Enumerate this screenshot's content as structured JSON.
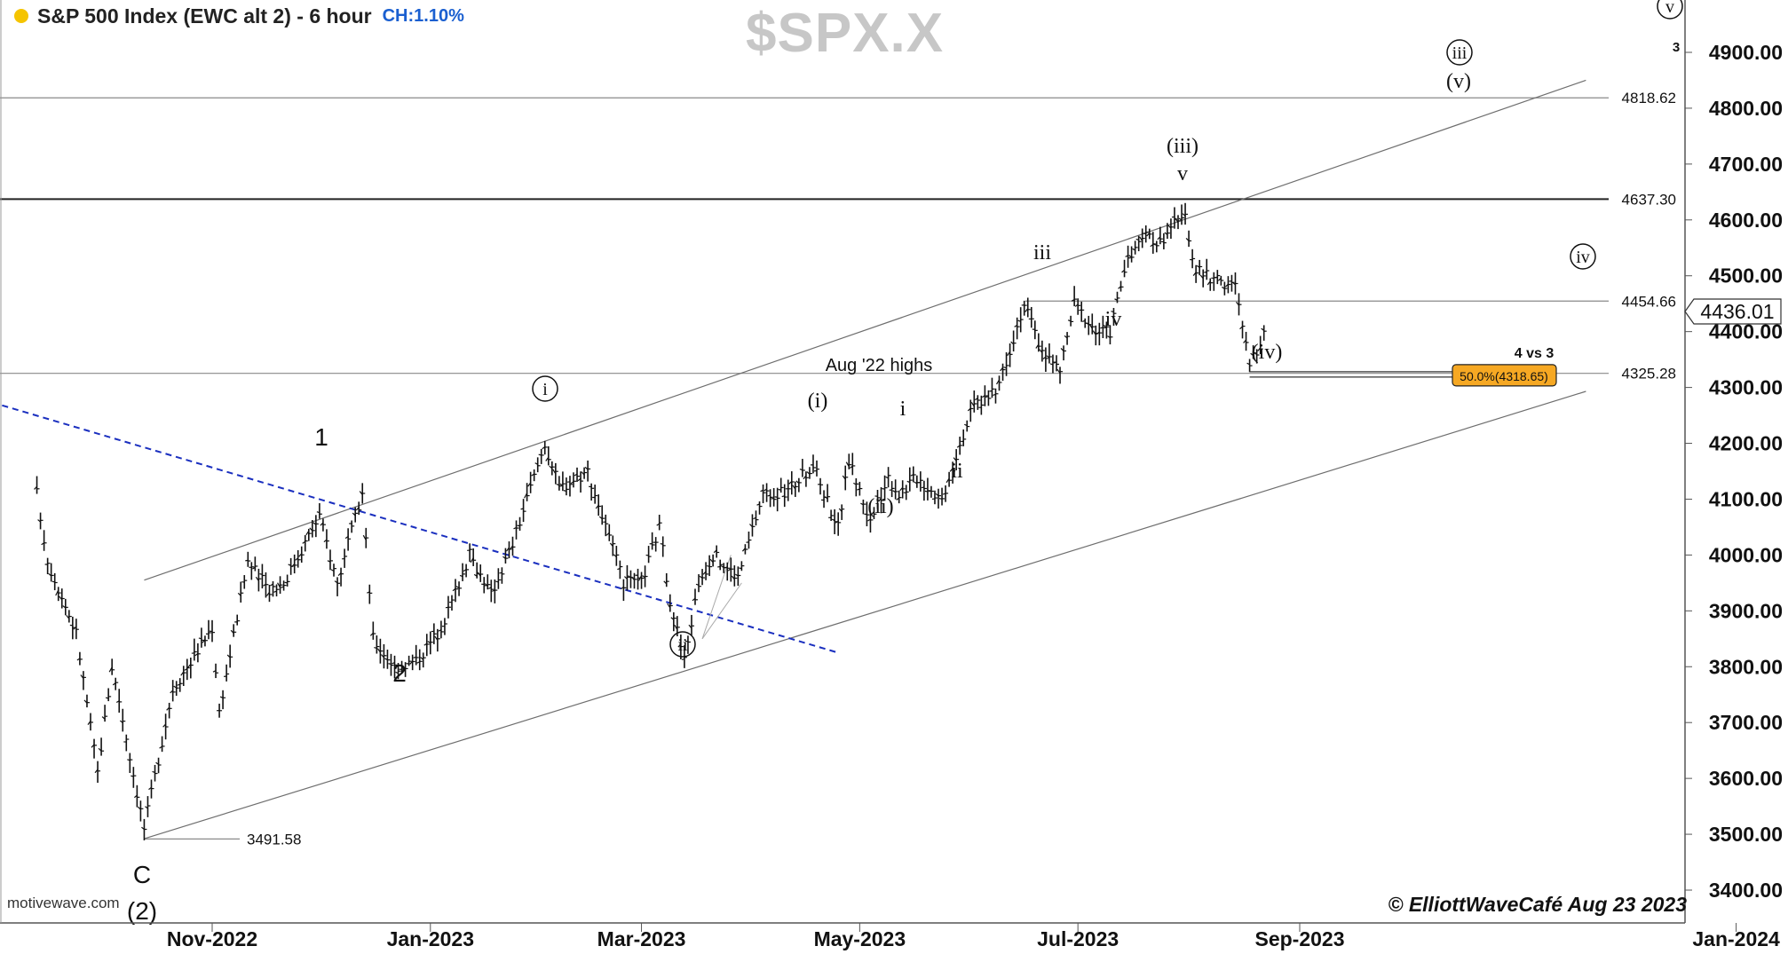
{
  "header": {
    "title": "S&P 500 Index (EWC alt 2) - 6 hour",
    "change": "CH:1.10%",
    "watermark": "$SPX.X",
    "status_dot_color": "#f5c400",
    "change_color": "#1a5fd0"
  },
  "footer": {
    "source": "motivewave.com",
    "copyright": "© ElliottWaveCafé Aug 23 2023"
  },
  "chart_data": {
    "type": "ohlc",
    "ylim": [
      3360,
      4980
    ],
    "y_ticks": [
      "3400.00",
      "3500.00",
      "3600.00",
      "3700.00",
      "3800.00",
      "3900.00",
      "4000.00",
      "4100.00",
      "4200.00",
      "4300.00",
      "4400.00",
      "4500.00",
      "4600.00",
      "4700.00",
      "4800.00",
      "4900.00"
    ],
    "x_ticks": [
      "Nov-2022",
      "Jan-2023",
      "Mar-2023",
      "May-2023",
      "Jul-2023",
      "Sep-2023",
      "Jan-2024"
    ],
    "current_price": "4436.01",
    "levels": [
      {
        "label": "4818.62",
        "value": 4818.62
      },
      {
        "label": "4637.30",
        "value": 4637.3
      },
      {
        "label": "4454.66",
        "value": 4454.66
      },
      {
        "label": "4325.28",
        "value": 4325.28
      }
    ],
    "low_marker": {
      "label": "3491.58",
      "value": 3491.58
    },
    "fib_marker": {
      "label": "50.0%(4318.65)",
      "value": 4318.65,
      "note": "4 vs 3"
    },
    "text_annotations": [
      "Aug '22 highs"
    ],
    "wave_labels": [
      "C",
      "(2)",
      "1",
      "2",
      "i",
      "ii",
      "(i)",
      "(ii)",
      "i",
      "ii",
      "iii",
      "iv",
      "v",
      "(iii)",
      "(iv)",
      "iii",
      "(v)",
      "iv",
      "v",
      "3"
    ],
    "bar_pivots": [
      [
        "2022-09-13",
        4110
      ],
      [
        "2022-09-16",
        3990
      ],
      [
        "2022-09-24",
        3860
      ],
      [
        "2022-09-30",
        3610
      ],
      [
        "2022-10-04",
        3800
      ],
      [
        "2022-10-06",
        3740
      ],
      [
        "2022-10-13",
        3510
      ],
      [
        "2022-10-21",
        3760
      ],
      [
        "2022-11-01",
        3870
      ],
      [
        "2022-11-03",
        3720
      ],
      [
        "2022-11-11",
        3990
      ],
      [
        "2022-11-14",
        3960
      ],
      [
        "2022-11-17",
        3940
      ],
      [
        "2022-11-21",
        3950
      ],
      [
        "2022-12-01",
        4070
      ],
      [
        "2022-12-06",
        3950
      ],
      [
        "2022-12-13",
        4110
      ],
      [
        "2022-12-16",
        3850
      ],
      [
        "2022-12-22",
        3800
      ],
      [
        "2022-12-28",
        3810
      ],
      [
        "2023-01-03",
        3860
      ],
      [
        "2023-01-06",
        3900
      ],
      [
        "2023-01-12",
        4000
      ],
      [
        "2023-01-18",
        3930
      ],
      [
        "2023-01-24",
        4020
      ],
      [
        "2023-02-02",
        4200
      ],
      [
        "2023-02-06",
        4120
      ],
      [
        "2023-02-14",
        4150
      ],
      [
        "2023-02-24",
        3950
      ],
      [
        "2023-03-01",
        3950
      ],
      [
        "2023-03-06",
        4050
      ],
      [
        "2023-03-09",
        3920
      ],
      [
        "2023-03-13",
        3810
      ],
      [
        "2023-03-17",
        3950
      ],
      [
        "2023-03-21",
        4000
      ],
      [
        "2023-03-28",
        3960
      ],
      [
        "2023-04-04",
        4110
      ],
      [
        "2023-04-10",
        4110
      ],
      [
        "2023-04-18",
        4160
      ],
      [
        "2023-04-25",
        4050
      ],
      [
        "2023-04-28",
        4170
      ],
      [
        "2023-05-04",
        4060
      ],
      [
        "2023-05-09",
        4140
      ],
      [
        "2023-05-12",
        4110
      ],
      [
        "2023-05-17",
        4140
      ],
      [
        "2023-05-24",
        4100
      ],
      [
        "2023-05-29",
        4200
      ],
      [
        "2023-06-02",
        4270
      ],
      [
        "2023-06-08",
        4290
      ],
      [
        "2023-06-16",
        4450
      ],
      [
        "2023-06-20",
        4380
      ],
      [
        "2023-06-23",
        4350
      ],
      [
        "2023-06-26",
        4330
      ],
      [
        "2023-06-30",
        4450
      ],
      [
        "2023-07-06",
        4400
      ],
      [
        "2023-07-10",
        4400
      ],
      [
        "2023-07-14",
        4510
      ],
      [
        "2023-07-19",
        4570
      ],
      [
        "2023-07-24",
        4560
      ],
      [
        "2023-07-27",
        4590
      ],
      [
        "2023-07-31",
        4600
      ],
      [
        "2023-08-03",
        4510
      ],
      [
        "2023-08-09",
        4490
      ],
      [
        "2023-08-14",
        4480
      ],
      [
        "2023-08-18",
        4340
      ],
      [
        "2023-08-21",
        4380
      ],
      [
        "2023-08-23",
        4440
      ]
    ]
  },
  "colors": {
    "bars": "#111111",
    "level_line": "#8a8a8a",
    "strong_level_line": "#222222",
    "channel_line": "#6e6e6e",
    "trend_line": "#1a2fbf",
    "fib_fill": "#f6a823"
  }
}
